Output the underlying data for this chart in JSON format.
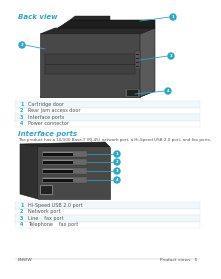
{
  "bg_color": "#ffffff",
  "title1": "Back view",
  "title2": "Interface ports",
  "title_color": "#29a8c8",
  "title_fontsize": 5.0,
  "back_labels": [
    [
      "1",
      "Cartridge door"
    ],
    [
      "2",
      "Rear jam access door"
    ],
    [
      "3",
      "Interface ports"
    ],
    [
      "4",
      "Power connector"
    ]
  ],
  "interface_labels": [
    [
      "1",
      "Hi-Speed USB 2.0 port"
    ],
    [
      "2",
      "Network port"
    ],
    [
      "3",
      "Line    fax port"
    ],
    [
      "4",
      "Telephone    fax port"
    ]
  ],
  "interface_desc": "The product has a 10/100 Base-T (RJ-45) network port, a Hi-Speed USB 2.0 port, and fax ports.",
  "label_color": "#29a8c8",
  "line_color": "#29a8c8",
  "text_color": "#555555",
  "row_colors": [
    "#f0f8fb",
    "#ffffff",
    "#f0f8fb",
    "#ffffff"
  ],
  "sep_color": "#c8dde5",
  "footer_left": "ENWW",
  "footer_right": "Product views   5",
  "label_fontsize": 3.5,
  "desc_fontsize": 3.0,
  "footer_fontsize": 3.2,
  "number_color": "#29a8c8",
  "printer_body_color": "#4a4a4a",
  "printer_dark_color": "#2a2a2a",
  "printer_mid_color": "#383838",
  "printer_light_color": "#666666"
}
